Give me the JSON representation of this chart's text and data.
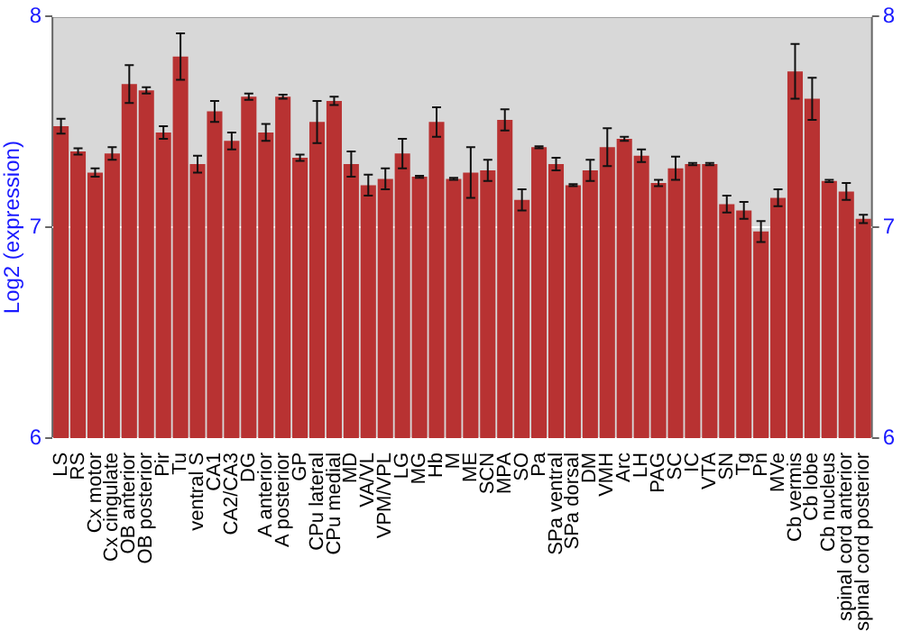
{
  "chart_data": {
    "type": "bar",
    "ylabel": "Log2 (expression)",
    "categories": [
      "LS",
      "RS",
      "Cx motor",
      "Cx cingulate",
      "OB anterior",
      "OB posterior",
      "Pir",
      "Tu",
      "ventral S",
      "CA1",
      "CA2/CA3",
      "DG",
      "A anterior",
      "A posterior",
      "GP",
      "CPu lateral",
      "CPu medial",
      "MD",
      "VA/VL",
      "VPM/VPL",
      "LG",
      "MG",
      "Hb",
      "M",
      "ME",
      "SCN",
      "MPA",
      "SO",
      "Pa",
      "SPa ventral",
      "SPa dorsal",
      "DM",
      "VMH",
      "Arc",
      "LH",
      "PAG",
      "SC",
      "IC",
      "VTA",
      "SN",
      "Tg",
      "Pn",
      "MVe",
      "Cb vermis",
      "Cb lobe",
      "Cb nucleus",
      "spinal cord anterior",
      "spinal cord posterior"
    ],
    "values": [
      7.48,
      7.36,
      7.26,
      7.35,
      7.68,
      7.65,
      7.45,
      7.81,
      7.3,
      7.55,
      7.41,
      7.62,
      7.45,
      7.62,
      7.33,
      7.5,
      7.6,
      7.3,
      7.2,
      7.23,
      7.35,
      7.24,
      7.5,
      7.23,
      7.26,
      7.27,
      7.51,
      7.13,
      7.38,
      7.3,
      7.2,
      7.27,
      7.38,
      7.42,
      7.34,
      7.21,
      7.28,
      7.3,
      7.3,
      7.11,
      7.08,
      6.98,
      7.14,
      7.74,
      7.61,
      7.22,
      7.17,
      7.04
    ],
    "errors": [
      0.035,
      0.015,
      0.02,
      0.03,
      0.09,
      0.015,
      0.03,
      0.11,
      0.04,
      0.05,
      0.04,
      0.015,
      0.04,
      0.01,
      0.015,
      0.1,
      0.02,
      0.06,
      0.05,
      0.05,
      0.07,
      0.005,
      0.07,
      0.005,
      0.12,
      0.05,
      0.05,
      0.05,
      0.005,
      0.03,
      0.005,
      0.05,
      0.09,
      0.01,
      0.03,
      0.015,
      0.055,
      0.005,
      0.005,
      0.04,
      0.04,
      0.05,
      0.04,
      0.13,
      0.1,
      0.005,
      0.04,
      0.02
    ],
    "color": "#b83232",
    "ylim": [
      6,
      8
    ],
    "yticks": [
      6,
      7,
      8
    ],
    "y2lim": [
      6,
      8
    ],
    "y2ticks": [
      6,
      7,
      8
    ],
    "grid": "y",
    "legend": false
  }
}
